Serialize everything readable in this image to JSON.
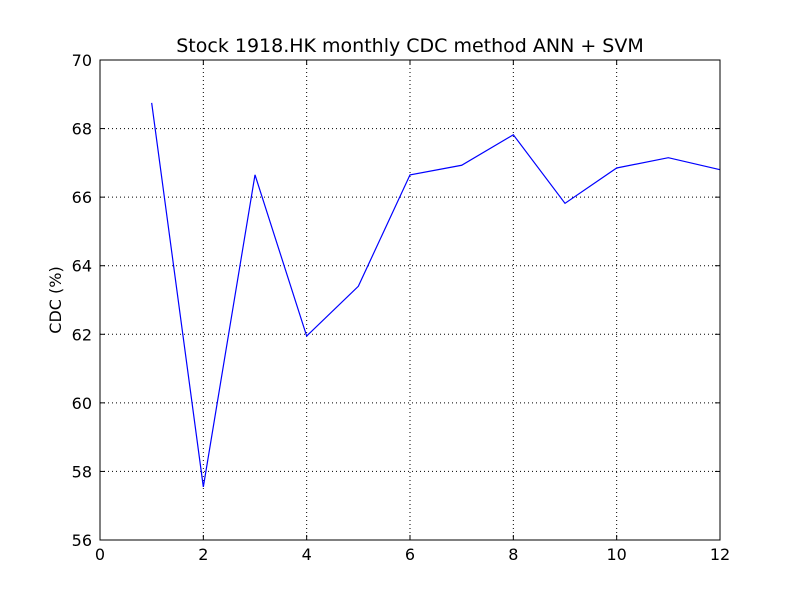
{
  "chart_data": {
    "type": "line",
    "title": "Stock 1918.HK monthly CDC method ANN + SVM",
    "xlabel": "",
    "ylabel": "CDC (%)",
    "xlim": [
      0,
      12
    ],
    "ylim": [
      56,
      70
    ],
    "xticks": [
      0,
      2,
      4,
      6,
      8,
      10,
      12
    ],
    "yticks": [
      56,
      58,
      60,
      62,
      64,
      66,
      68,
      70
    ],
    "grid": true,
    "legend": "none",
    "series": [
      {
        "color": "#0000ff",
        "x": [
          1,
          2,
          3,
          4,
          5,
          6,
          7,
          8,
          9,
          10,
          11,
          12
        ],
        "y": [
          68.75,
          57.55,
          66.65,
          61.95,
          63.4,
          66.65,
          66.93,
          67.82,
          65.82,
          66.85,
          67.15,
          66.8
        ]
      }
    ]
  }
}
